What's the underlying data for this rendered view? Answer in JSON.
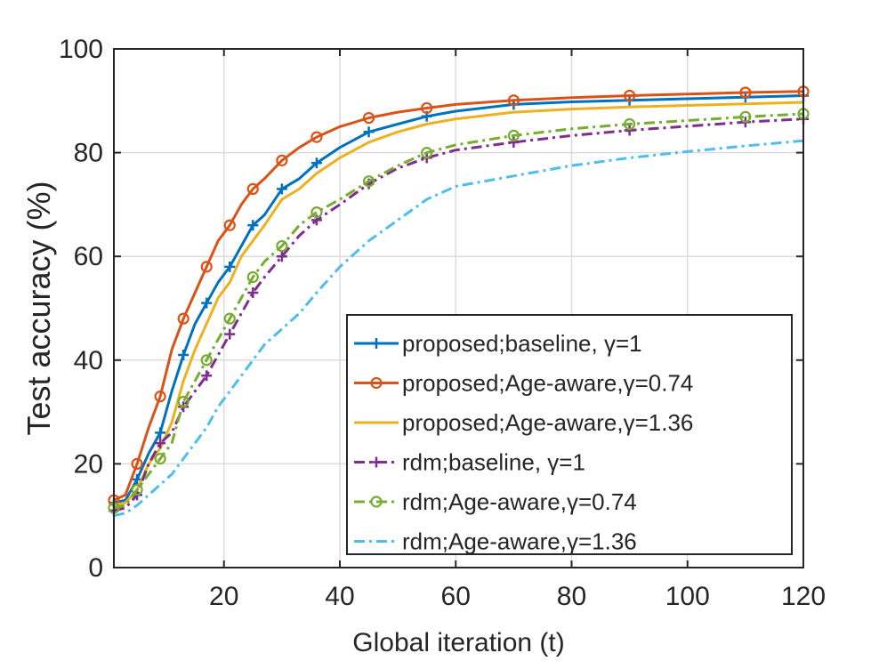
{
  "chart_data": {
    "type": "line",
    "xlabel": "Global iteration (t)",
    "ylabel": "Test accuracy (%)",
    "xlim": [
      1,
      120
    ],
    "ylim": [
      0,
      100
    ],
    "xticks": [
      "20",
      "40",
      "60",
      "80",
      "100",
      "120"
    ],
    "yticks": [
      "0",
      "20",
      "40",
      "60",
      "80",
      "100"
    ],
    "grid": true,
    "legend_position": "lower-right",
    "series": [
      {
        "name": "proposed;baseline, γ=1",
        "color": "#0072BD",
        "line_style": "solid",
        "marker": "plus",
        "x": [
          1,
          3,
          5,
          7,
          9,
          11,
          13,
          15,
          17,
          19,
          21,
          23,
          25,
          27,
          30,
          33,
          36,
          40,
          45,
          50,
          55,
          60,
          70,
          80,
          90,
          100,
          110,
          120
        ],
        "y": [
          12.5,
          13,
          17,
          22,
          26,
          34,
          41,
          47,
          51,
          55,
          58,
          62,
          66,
          68,
          73,
          75,
          78,
          81,
          84,
          85.5,
          87,
          88,
          89.3,
          89.8,
          90.1,
          90.4,
          90.7,
          91
        ]
      },
      {
        "name": "proposed;Age-aware,γ=0.74",
        "color": "#D95319",
        "line_style": "solid",
        "marker": "circle",
        "x": [
          1,
          3,
          5,
          7,
          9,
          11,
          13,
          15,
          17,
          19,
          21,
          23,
          25,
          27,
          30,
          33,
          36,
          40,
          45,
          50,
          55,
          60,
          70,
          80,
          90,
          100,
          110,
          120
        ],
        "y": [
          13,
          14,
          20,
          27,
          33,
          42,
          48,
          53,
          58,
          63,
          66,
          70,
          73,
          75,
          78.5,
          81,
          83,
          85,
          86.7,
          87.8,
          88.6,
          89.3,
          90.1,
          90.6,
          91,
          91.3,
          91.6,
          91.8
        ]
      },
      {
        "name": "proposed;Age-aware,γ=1.36",
        "color": "#EDB120",
        "line_style": "solid",
        "marker": "none",
        "x": [
          1,
          3,
          5,
          7,
          9,
          11,
          13,
          15,
          17,
          19,
          21,
          23,
          25,
          27,
          30,
          33,
          36,
          40,
          45,
          50,
          55,
          60,
          70,
          80,
          90,
          100,
          110,
          120
        ],
        "y": [
          12,
          12.5,
          15,
          20,
          23,
          28,
          36,
          42,
          47,
          52,
          55,
          60,
          63,
          66,
          71,
          73,
          76,
          79,
          82,
          84,
          85.5,
          86.5,
          87.8,
          88.4,
          88.8,
          89.1,
          89.4,
          89.7
        ]
      },
      {
        "name": "rdm;baseline, γ=1",
        "color": "#7E2F8E",
        "line_style": "dashdot",
        "marker": "plus",
        "x": [
          1,
          3,
          5,
          7,
          9,
          11,
          13,
          15,
          17,
          19,
          21,
          23,
          25,
          27,
          30,
          33,
          36,
          40,
          45,
          50,
          55,
          60,
          70,
          80,
          90,
          100,
          110,
          120
        ],
        "y": [
          11,
          11.5,
          14,
          20,
          24,
          26,
          31,
          34,
          37,
          41,
          45,
          49,
          53,
          56,
          60,
          64,
          67,
          70,
          74,
          77,
          79,
          80.5,
          82,
          83.3,
          84.3,
          85.1,
          85.9,
          86.5
        ]
      },
      {
        "name": "rdm;Age-aware,γ=0.74",
        "color": "#77AC30",
        "line_style": "dashdot",
        "marker": "circle",
        "x": [
          1,
          3,
          5,
          7,
          9,
          11,
          13,
          15,
          17,
          19,
          21,
          23,
          25,
          27,
          30,
          33,
          36,
          40,
          45,
          50,
          55,
          60,
          70,
          80,
          90,
          100,
          110,
          120
        ],
        "y": [
          11.5,
          12,
          15,
          18,
          21,
          24,
          32,
          36,
          40,
          44,
          48,
          52,
          56,
          59,
          62,
          66,
          68.5,
          71,
          74.5,
          77.5,
          80,
          81.5,
          83.3,
          84.6,
          85.5,
          86.2,
          86.9,
          87.5
        ]
      },
      {
        "name": "rdm;Age-aware,γ=1.36",
        "color": "#4DBEEE",
        "line_style": "dashdot",
        "marker": "none",
        "x": [
          1,
          3,
          5,
          7,
          9,
          11,
          13,
          15,
          17,
          19,
          21,
          23,
          25,
          27,
          30,
          33,
          36,
          40,
          45,
          50,
          55,
          60,
          70,
          80,
          90,
          100,
          110,
          120
        ],
        "y": [
          10,
          10.5,
          12,
          14,
          16,
          18,
          21,
          24,
          27,
          31,
          34,
          37,
          40,
          43,
          46,
          49,
          53,
          58,
          63,
          67,
          71,
          73.5,
          75.5,
          77.5,
          79,
          80.2,
          81.3,
          82.3
        ]
      }
    ]
  }
}
